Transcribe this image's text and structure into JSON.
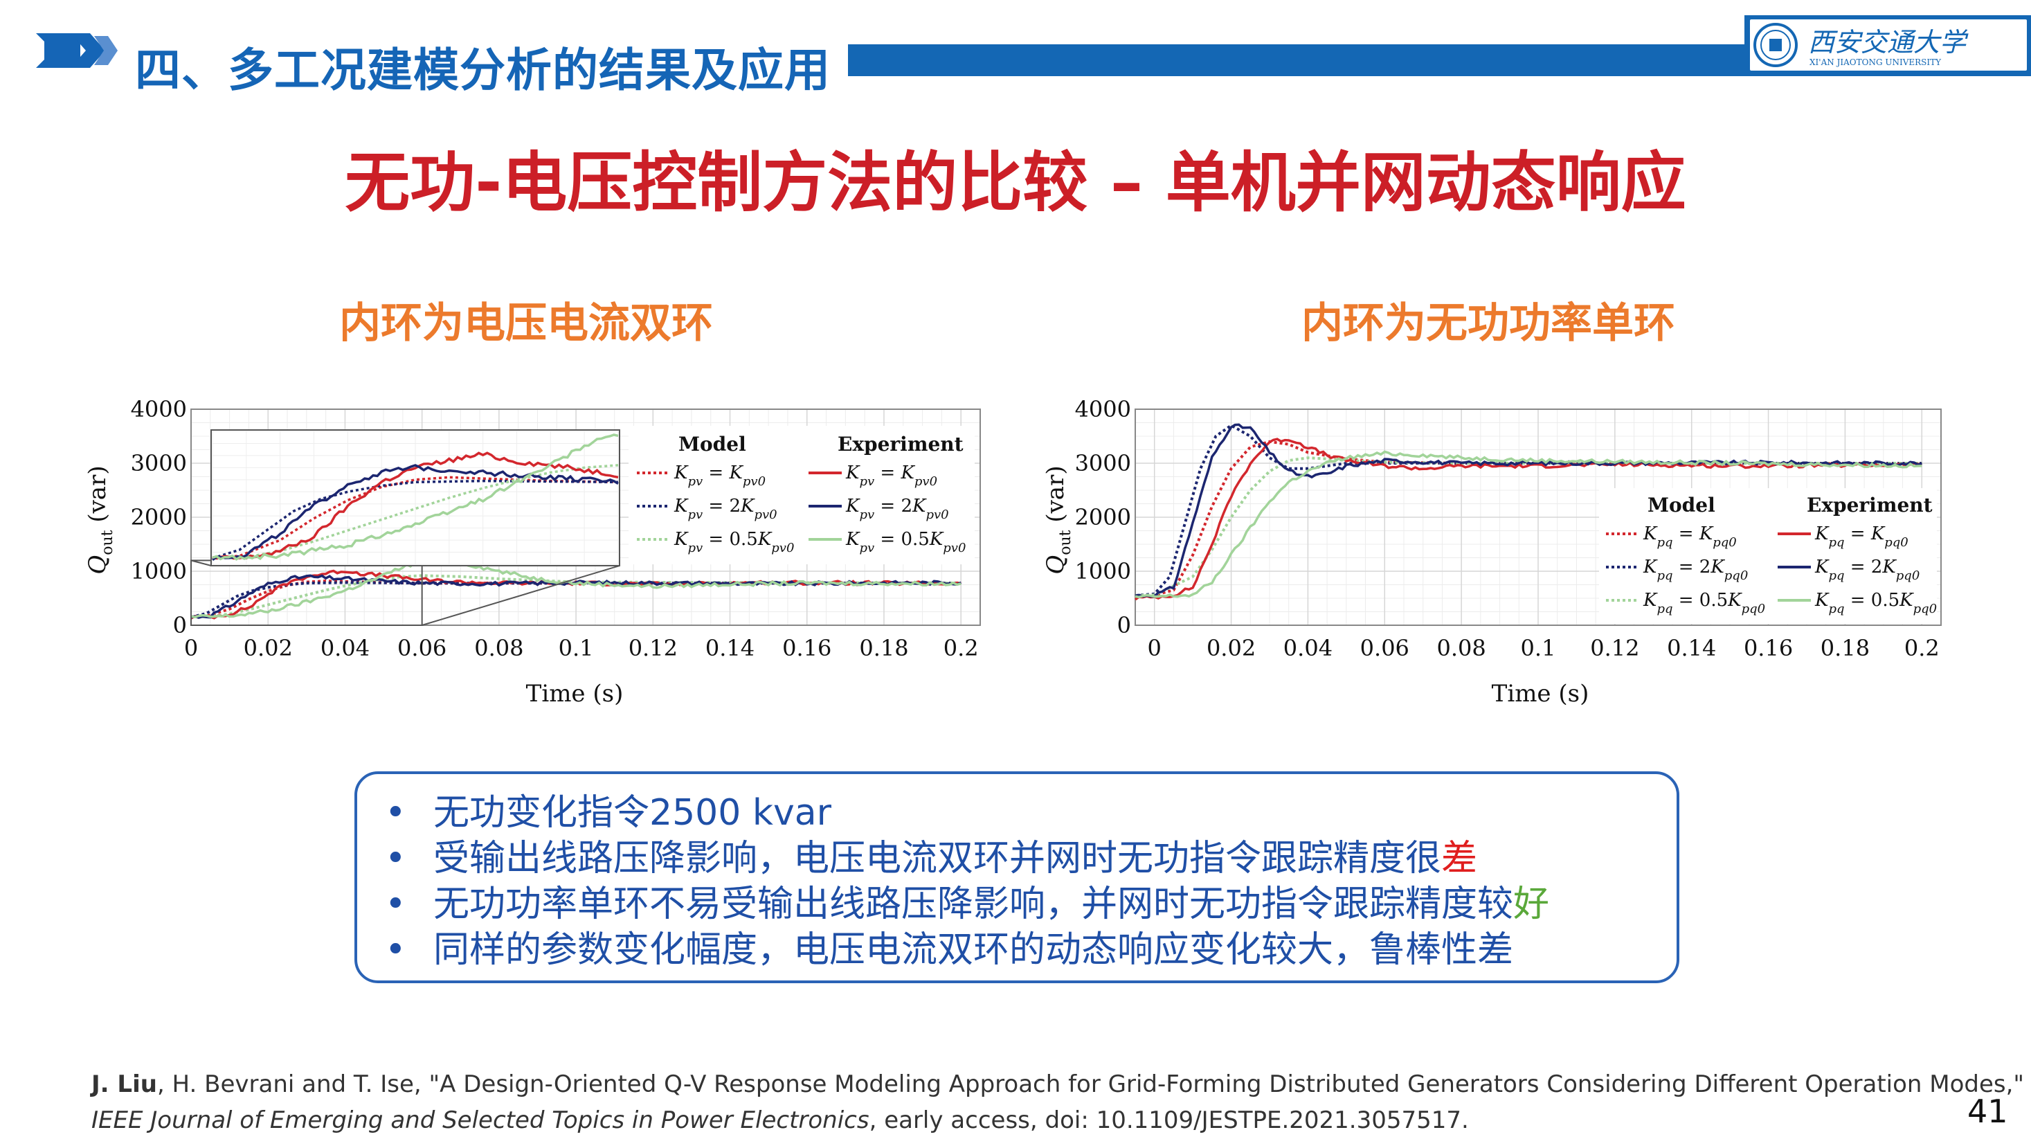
{
  "header": {
    "section_title": "四、多工况建模分析的结果及应用",
    "logo_text": "西安交通大学",
    "logo_subtext": "XI'AN JIAOTONG UNIVERSITY"
  },
  "slide_title": "无功-电压控制方法的比较 – 单机并网动态响应",
  "left_panel": {
    "subtitle": "内环为电压电流双环"
  },
  "right_panel": {
    "subtitle": "内环为无功功率单环"
  },
  "colors": {
    "red": "#d3272d",
    "navy": "#1c2670",
    "green": "#a2d49a",
    "brand_blue": "#1467b4",
    "title_red": "#cc1f27",
    "subtitle_orange": "#ec7a2c"
  },
  "chart_data": [
    {
      "type": "line",
      "xlabel": "Time (s)",
      "ylabel": "Q_out (var)",
      "xlim": [
        0,
        0.205
      ],
      "ylim": [
        0,
        4000
      ],
      "xticks": [
        "0",
        "0.02",
        "0.04",
        "0.06",
        "0.08",
        "0.1",
        "0.12",
        "0.14",
        "0.16",
        "0.18",
        "0.2"
      ],
      "yticks": [
        "0",
        "1000",
        "2000",
        "3000",
        "4000"
      ],
      "grid": true,
      "legend": {
        "placement": "top-right",
        "model_title": "Model",
        "experiment_title": "Experiment",
        "entries": [
          "K_pv = K_pv0",
          "K_pv = 2K_pv0",
          "K_pv = 0.5K_pv0"
        ]
      },
      "inset": {
        "xlim": [
          0,
          0.06
        ],
        "ylim": [
          100,
          1200
        ]
      },
      "series": [
        {
          "name": "Model K_pv = K_pv0",
          "color": "red",
          "dashed": true,
          "x": [
            0,
            0.004,
            0.01,
            0.015,
            0.02,
            0.025,
            0.03,
            0.035,
            0.04,
            0.05,
            0.06,
            0.08,
            0.1,
            0.12,
            0.15,
            0.2
          ],
          "y": [
            150,
            170,
            300,
            480,
            630,
            740,
            800,
            820,
            810,
            790,
            780,
            780,
            780,
            780,
            780,
            780
          ]
        },
        {
          "name": "Model K_pv = 2K_pv0",
          "color": "navy",
          "dashed": true,
          "x": [
            0,
            0.004,
            0.008,
            0.012,
            0.016,
            0.02,
            0.025,
            0.03,
            0.04,
            0.06,
            0.08,
            0.1,
            0.15,
            0.2
          ],
          "y": [
            150,
            220,
            380,
            540,
            640,
            700,
            750,
            780,
            790,
            780,
            780,
            780,
            780,
            780
          ]
        },
        {
          "name": "Model K_pv = 0.5K_pv0",
          "color": "green",
          "dashed": true,
          "x": [
            0,
            0.005,
            0.01,
            0.015,
            0.02,
            0.025,
            0.03,
            0.035,
            0.04,
            0.045,
            0.05,
            0.055,
            0.06,
            0.07,
            0.08,
            0.1,
            0.2
          ],
          "y": [
            150,
            160,
            210,
            290,
            380,
            470,
            560,
            650,
            730,
            800,
            860,
            900,
            920,
            900,
            860,
            800,
            780
          ]
        },
        {
          "name": "Experiment K_pv = K_pv0",
          "color": "red",
          "dashed": false,
          "x": [
            0,
            0.005,
            0.01,
            0.015,
            0.02,
            0.025,
            0.03,
            0.035,
            0.04,
            0.045,
            0.05,
            0.055,
            0.06,
            0.07,
            0.08,
            0.1,
            0.12,
            0.15,
            0.2
          ],
          "y": [
            150,
            150,
            210,
            330,
            580,
            780,
            900,
            960,
            1010,
            950,
            920,
            880,
            840,
            800,
            780,
            780,
            760,
            790,
            770
          ]
        },
        {
          "name": "Experiment K_pv = 2K_pv0",
          "color": "navy",
          "dashed": false,
          "x": [
            0,
            0.005,
            0.01,
            0.015,
            0.02,
            0.025,
            0.03,
            0.035,
            0.04,
            0.05,
            0.06,
            0.08,
            0.1,
            0.15,
            0.2
          ],
          "y": [
            150,
            180,
            360,
            580,
            760,
            860,
            900,
            880,
            860,
            820,
            780,
            770,
            790,
            770,
            790
          ]
        },
        {
          "name": "Experiment K_pv = 0.5K_pv0",
          "color": "green",
          "dashed": false,
          "x": [
            0,
            0.01,
            0.02,
            0.03,
            0.04,
            0.045,
            0.05,
            0.055,
            0.06,
            0.07,
            0.08,
            0.09,
            0.1,
            0.12,
            0.14,
            0.16,
            0.2
          ],
          "y": [
            150,
            170,
            260,
            430,
            640,
            780,
            920,
            1080,
            1180,
            1160,
            1000,
            860,
            780,
            720,
            760,
            780,
            770
          ]
        }
      ]
    },
    {
      "type": "line",
      "xlabel": "Time (s)",
      "ylabel": "Q_out (var)",
      "xlim": [
        -0.005,
        0.205
      ],
      "ylim": [
        0,
        4000
      ],
      "xticks": [
        "0",
        "0.02",
        "0.04",
        "0.06",
        "0.08",
        "0.1",
        "0.12",
        "0.14",
        "0.16",
        "0.18",
        "0.2"
      ],
      "yticks": [
        "0",
        "1000",
        "2000",
        "3000",
        "4000"
      ],
      "grid": true,
      "legend": {
        "placement": "bottom-right",
        "model_title": "Model",
        "experiment_title": "Experiment",
        "entries": [
          "K_pq = K_pq0",
          "K_pq = 2K_pq0",
          "K_pq = 0.5K_pq0"
        ]
      },
      "series": [
        {
          "name": "Model K_pq = K_pq0",
          "color": "red",
          "dashed": true,
          "x": [
            -0.005,
            0,
            0.005,
            0.01,
            0.015,
            0.02,
            0.025,
            0.03,
            0.035,
            0.04,
            0.05,
            0.06,
            0.08,
            0.1,
            0.15,
            0.2
          ],
          "y": [
            550,
            560,
            650,
            1300,
            2200,
            2900,
            3300,
            3400,
            3350,
            3200,
            3080,
            3020,
            3000,
            3000,
            3000,
            3000
          ]
        },
        {
          "name": "Model K_pq = 2K_pq0",
          "color": "navy",
          "dashed": true,
          "x": [
            -0.005,
            0,
            0.004,
            0.008,
            0.012,
            0.016,
            0.02,
            0.025,
            0.03,
            0.035,
            0.04,
            0.05,
            0.06,
            0.08,
            0.1,
            0.2
          ],
          "y": [
            550,
            580,
            900,
            1900,
            2900,
            3500,
            3700,
            3500,
            3100,
            2900,
            2900,
            3000,
            3000,
            3000,
            3000,
            3000
          ]
        },
        {
          "name": "Model K_pq = 0.5K_pq0",
          "color": "green",
          "dashed": true,
          "x": [
            -0.005,
            0,
            0.01,
            0.015,
            0.02,
            0.025,
            0.03,
            0.035,
            0.04,
            0.045,
            0.05,
            0.06,
            0.08,
            0.1,
            0.2
          ],
          "y": [
            550,
            560,
            900,
            1400,
            2000,
            2500,
            2850,
            3050,
            3100,
            3080,
            3050,
            3020,
            3000,
            3000,
            3000
          ]
        },
        {
          "name": "Experiment K_pq = K_pq0",
          "color": "red",
          "dashed": false,
          "x": [
            -0.005,
            0,
            0.005,
            0.01,
            0.015,
            0.02,
            0.025,
            0.03,
            0.035,
            0.04,
            0.045,
            0.05,
            0.06,
            0.07,
            0.08,
            0.1,
            0.12,
            0.15,
            0.2
          ],
          "y": [
            500,
            520,
            560,
            700,
            1500,
            2400,
            3000,
            3400,
            3450,
            3300,
            3150,
            3050,
            2950,
            2900,
            2950,
            2950,
            2980,
            2950,
            2970
          ]
        },
        {
          "name": "Experiment K_pq = 2K_pq0",
          "color": "navy",
          "dashed": false,
          "x": [
            -0.005,
            0,
            0.005,
            0.01,
            0.015,
            0.02,
            0.025,
            0.03,
            0.035,
            0.04,
            0.045,
            0.05,
            0.06,
            0.08,
            0.1,
            0.15,
            0.2
          ],
          "y": [
            550,
            560,
            700,
            1900,
            3100,
            3700,
            3650,
            3200,
            2850,
            2750,
            2800,
            2950,
            3050,
            3000,
            3000,
            3010,
            3000
          ]
        },
        {
          "name": "Experiment K_pq = 0.5K_pq0",
          "color": "green",
          "dashed": false,
          "x": [
            -0.005,
            0,
            0.01,
            0.015,
            0.02,
            0.025,
            0.03,
            0.035,
            0.04,
            0.045,
            0.05,
            0.06,
            0.07,
            0.08,
            0.1,
            0.15,
            0.2
          ],
          "y": [
            520,
            530,
            560,
            800,
            1300,
            1800,
            2300,
            2650,
            2850,
            3000,
            3100,
            3180,
            3150,
            3100,
            3050,
            3000,
            2950
          ]
        }
      ]
    }
  ],
  "notes": [
    {
      "text": "无功变化指令2500 kvar",
      "highlight": "",
      "highlight_color": ""
    },
    {
      "text": "受输出线路压降影响，电压电流双环并网时无功指令跟踪精度很",
      "highlight": "差",
      "highlight_color": "#e01e1e"
    },
    {
      "text": "无功功率单环不易受输出线路压降影响，并网时无功指令跟踪精度较",
      "highlight": "好",
      "highlight_color": "#5aa83a"
    },
    {
      "text": "同样的参数变化幅度，电压电流双环的动态响应变化较大，鲁棒性差",
      "highlight": "",
      "highlight_color": ""
    }
  ],
  "reference": {
    "author_bold": "J. Liu",
    "rest_line1": ", H. Bevrani and T. Ise, \"A Design-Oriented Q-V Response Modeling Approach for Grid-Forming Distributed Generators Considering Different Operation Modes,\"",
    "journal_italic": "IEEE Journal of Emerging and Selected Topics in Power Electronics",
    "rest_line2": ", early access, doi: 10.1109/JESTPE.2021.3057517."
  },
  "page_number": "41"
}
